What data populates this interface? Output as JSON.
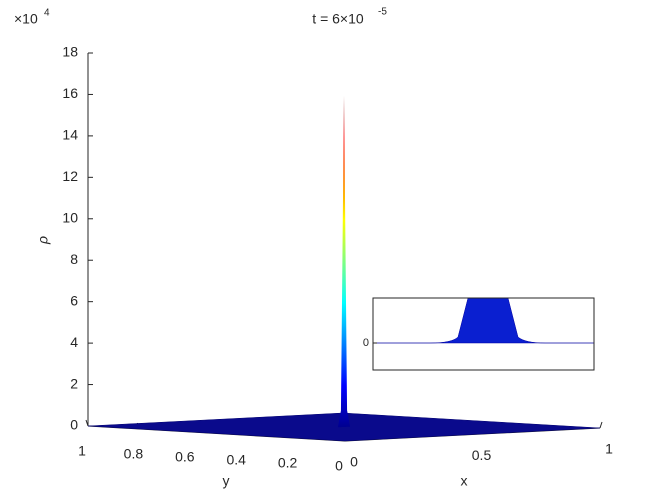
{
  "chart_data": {
    "type": "surface3d",
    "title": "t = 6×10",
    "title_exponent": "-5",
    "z_multiplier": "×10",
    "z_multiplier_exponent": "4",
    "xlabel": "x",
    "ylabel": "y",
    "zlabel": "ρ",
    "xlim": [
      0,
      1
    ],
    "xticks": [
      0,
      0.5,
      1
    ],
    "ylim": [
      0,
      1
    ],
    "yticks": [
      1,
      0.8,
      0.6,
      0.4,
      0.2,
      0
    ],
    "zlim": [
      0,
      18
    ],
    "zticks": [
      0,
      2,
      4,
      6,
      8,
      10,
      12,
      14,
      16,
      18
    ],
    "floor": 0,
    "peak": {
      "x": 0.5,
      "y": 0.5,
      "value": 16
    },
    "inset": {
      "ylim": [
        -0.375,
        0.625
      ],
      "yticks": [
        0
      ]
    }
  }
}
